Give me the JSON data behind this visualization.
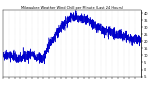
{
  "title": "Milwaukee Weather Wind Chill per Minute (Last 24 Hours)",
  "line_color": "#0000cc",
  "background_color": "#ffffff",
  "grid_color": "#bbbbbb",
  "ylim": [
    -5,
    42
  ],
  "num_points": 1440,
  "seed": 42,
  "figsize": [
    1.6,
    0.87
  ],
  "dpi": 100
}
